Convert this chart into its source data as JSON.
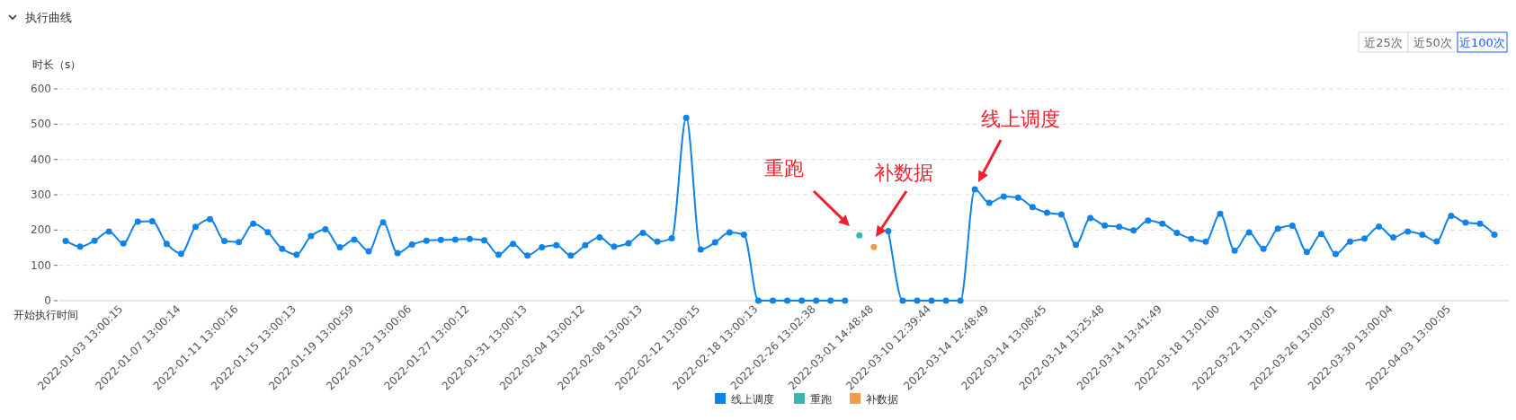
{
  "chart_data": {
    "type": "line",
    "title": "执行曲线",
    "ylabel": "时长（s）",
    "xlabel": "开始执行时间",
    "categories": [
      null,
      null,
      null,
      null,
      "2022-01-03 13:00:15",
      null,
      null,
      null,
      "2022-01-07 13:00:14",
      null,
      null,
      null,
      "2022-01-11 13:00:16",
      null,
      null,
      null,
      "2022-01-15 13:00:13",
      null,
      null,
      null,
      "2022-01-19 13:00:59",
      null,
      null,
      null,
      "2022-01-23 13:00:06",
      null,
      null,
      null,
      "2022-01-27 13:00:12",
      null,
      null,
      null,
      "2022-01-31 13:00:13",
      null,
      null,
      null,
      "2022-02-04 13:00:12",
      null,
      null,
      null,
      "2022-02-08 13:00:13",
      null,
      null,
      null,
      "2022-02-12 13:00:15",
      null,
      null,
      null,
      "2022-02-18 13:00:13",
      null,
      null,
      null,
      "2022-02-26 13:02:38",
      null,
      null,
      null,
      "2022-03-01 14:48:48",
      null,
      null,
      null,
      "2022-03-10 12:39:44",
      null,
      null,
      null,
      "2022-03-14 12:48:49",
      null,
      null,
      null,
      "2022-03-14 13:08:45",
      null,
      null,
      null,
      "2022-03-14 13:25:48",
      null,
      null,
      null,
      "2022-03-14 13:41:49",
      null,
      null,
      null,
      "2022-03-18 13:01:00",
      null,
      null,
      null,
      "2022-03-22 13:01:01",
      null,
      null,
      null,
      "2022-03-26 13:00:05",
      null,
      null,
      null,
      "2022-03-30 13:00:04",
      null,
      null,
      null,
      "2022-04-03 13:00:05",
      null,
      null,
      null
    ],
    "series": [
      {
        "name": "线上调度",
        "color": "#1183e6",
        "values": [
          169,
          153,
          170,
          196,
          162,
          224,
          225,
          161,
          133,
          209,
          231,
          169,
          166,
          218,
          194,
          147,
          130,
          183,
          202,
          151,
          173,
          140,
          222,
          135,
          159,
          170,
          172,
          173,
          175,
          171,
          130,
          161,
          128,
          151,
          157,
          128,
          157,
          179,
          153,
          163,
          192,
          167,
          177,
          518,
          145,
          165,
          193,
          187,
          0,
          0,
          0,
          0,
          0,
          0,
          0,
          null,
          null,
          197,
          0,
          0,
          0,
          0,
          0,
          315,
          277,
          295,
          292,
          265,
          249,
          244,
          158,
          234,
          213,
          209,
          199,
          227,
          218,
          192,
          175,
          167,
          246,
          142,
          193,
          147,
          204,
          212,
          138,
          189,
          132,
          167,
          176,
          210,
          179,
          196,
          187,
          168,
          240,
          221,
          218,
          187
        ]
      },
      {
        "name": "重跑",
        "color": "#3db5ac",
        "values": [
          null,
          null,
          null,
          null,
          null,
          null,
          null,
          null,
          null,
          null,
          null,
          null,
          null,
          null,
          null,
          null,
          null,
          null,
          null,
          null,
          null,
          null,
          null,
          null,
          null,
          null,
          null,
          null,
          null,
          null,
          null,
          null,
          null,
          null,
          null,
          null,
          null,
          null,
          null,
          null,
          null,
          null,
          null,
          null,
          null,
          null,
          null,
          null,
          null,
          null,
          null,
          null,
          null,
          null,
          null,
          185,
          null,
          null,
          null,
          null,
          null,
          null,
          null,
          null,
          null,
          null,
          null,
          null,
          null,
          null,
          null,
          null,
          null,
          null,
          null,
          null,
          null,
          null,
          null,
          null,
          null,
          null,
          null,
          null,
          null,
          null,
          null,
          null,
          null,
          null,
          null,
          null,
          null,
          null,
          null,
          null,
          null,
          null,
          null,
          null
        ]
      },
      {
        "name": "补数据",
        "color": "#f39a52",
        "values": [
          null,
          null,
          null,
          null,
          null,
          null,
          null,
          null,
          null,
          null,
          null,
          null,
          null,
          null,
          null,
          null,
          null,
          null,
          null,
          null,
          null,
          null,
          null,
          null,
          null,
          null,
          null,
          null,
          null,
          null,
          null,
          null,
          null,
          null,
          null,
          null,
          null,
          null,
          null,
          null,
          null,
          null,
          null,
          null,
          null,
          null,
          null,
          null,
          null,
          null,
          null,
          null,
          null,
          null,
          null,
          null,
          152,
          null,
          null,
          null,
          null,
          null,
          null,
          null,
          null,
          null,
          null,
          null,
          null,
          null,
          null,
          null,
          null,
          null,
          null,
          null,
          null,
          null,
          null,
          null,
          null,
          null,
          null,
          null,
          null,
          null,
          null,
          null,
          null,
          null,
          null,
          null,
          null,
          null,
          null,
          null,
          null,
          null,
          null,
          null
        ]
      }
    ],
    "ylim": [
      0,
      600
    ],
    "yticks": [
      0,
      100,
      200,
      300,
      400,
      500,
      600
    ],
    "grid": "y",
    "legend": "bottom",
    "marker": "circle",
    "line_style": "solid",
    "annotations": [
      "近25次",
      "近50次",
      "近100次",
      "重跑",
      "补数据",
      "线上调度"
    ]
  }
}
